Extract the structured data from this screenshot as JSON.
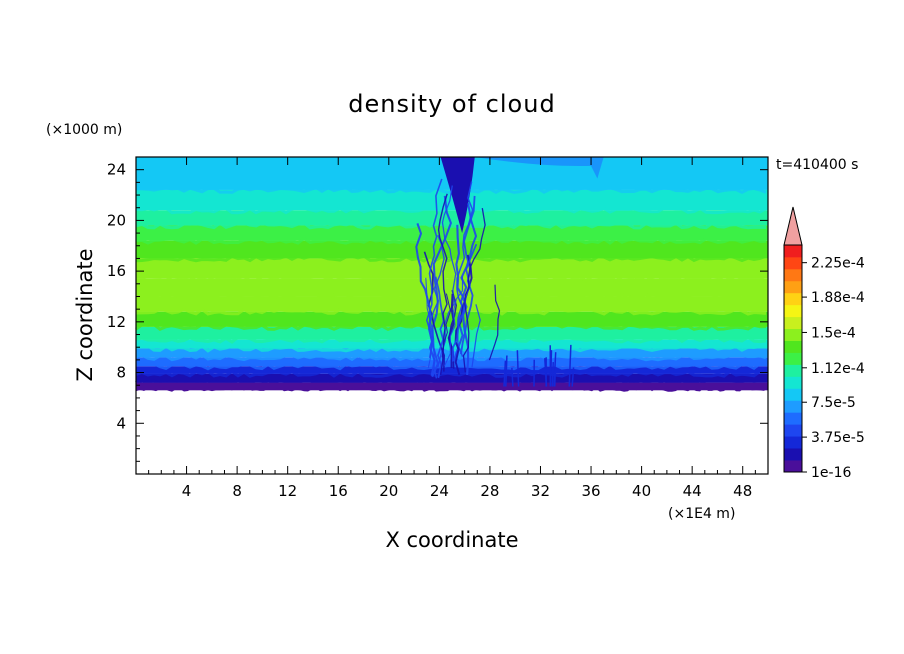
{
  "chart_data": {
    "type": "heatmap",
    "title": "density of cloud",
    "xlabel": "X coordinate",
    "ylabel": "Z coordinate",
    "x_unit": "(×1E4 m)",
    "y_unit": "(×1000 m)",
    "time_label": "t=410400 s",
    "xlim": [
      0,
      50
    ],
    "ylim": [
      0,
      25
    ],
    "x_ticks": [
      4,
      8,
      12,
      16,
      20,
      24,
      28,
      32,
      36,
      40,
      44,
      48
    ],
    "y_ticks": [
      4,
      8,
      12,
      16,
      20,
      24
    ],
    "colorbar": {
      "colors": [
        "#4a0f9a",
        "#1a0fb0",
        "#1428d8",
        "#1e46f0",
        "#1e6cff",
        "#1e9cff",
        "#14c8f5",
        "#14e6d2",
        "#1ef0a0",
        "#3cf046",
        "#50e61e",
        "#8cf01e",
        "#c8f01e",
        "#f5f514",
        "#ffd214",
        "#ffa014",
        "#ff7814",
        "#ff4614",
        "#f01e1e"
      ],
      "tick_labels": [
        "1e-16",
        "3.75e-5",
        "7.5e-5",
        "1.12e-4",
        "1.5e-4",
        "1.88e-4",
        "2.25e-4"
      ],
      "tick_values": [
        0,
        3.75e-05,
        7.5e-05,
        0.000112,
        0.00015,
        0.000188,
        0.000225
      ],
      "max_value": 0.000244,
      "overflow_color": "#f0a0a0"
    },
    "bands": [
      {
        "z0": 6.6,
        "z1": 7.2,
        "value": 1e-16
      },
      {
        "z0": 7.2,
        "z1": 7.9,
        "value": 1.8e-05
      },
      {
        "z0": 7.9,
        "z1": 8.5,
        "value": 3.8e-05
      },
      {
        "z0": 8.5,
        "z1": 9.2,
        "value": 5.6e-05
      },
      {
        "z0": 9.2,
        "z1": 9.9,
        "value": 7.6e-05
      },
      {
        "z0": 9.9,
        "z1": 10.6,
        "value": 9.5e-05
      },
      {
        "z0": 10.6,
        "z1": 11.6,
        "value": 0.000113
      },
      {
        "z0": 11.6,
        "z1": 12.8,
        "value": 0.000132
      },
      {
        "z0": 12.8,
        "z1": 14.0,
        "value": 0.000145
      },
      {
        "z0": 14.0,
        "z1": 15.4,
        "value": 0.000152
      },
      {
        "z0": 15.4,
        "z1": 17.0,
        "value": 0.000145
      },
      {
        "z0": 17.0,
        "z1": 18.4,
        "value": 0.000132
      },
      {
        "z0": 18.4,
        "z1": 19.6,
        "value": 0.00012
      },
      {
        "z0": 19.6,
        "z1": 20.8,
        "value": 0.000113
      },
      {
        "z0": 20.8,
        "z1": 22.4,
        "value": 9.5e-05
      },
      {
        "z0": 22.4,
        "z1": 25.0,
        "value": 8e-05
      }
    ],
    "disturbance_x_range": [
      23,
      30
    ],
    "low_density_column": {
      "x_center": 25.5,
      "value": 1e-16
    }
  }
}
